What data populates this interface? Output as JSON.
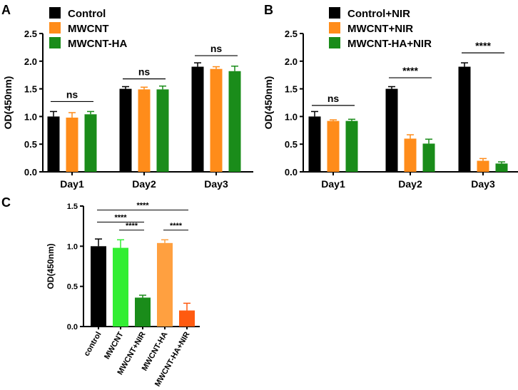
{
  "colors": {
    "black": "#000000",
    "orange": "#ff8c1a",
    "green": "#1a8c1a",
    "bright_green": "#33ee33",
    "light_orange": "#ffa040",
    "red_orange": "#ff5a10"
  },
  "chart_data": [
    {
      "panel": "A",
      "type": "bar",
      "ylabel": "OD(450nm)",
      "ylim": [
        0,
        2.5
      ],
      "yticks": [
        "0.0",
        "0.5",
        "1.0",
        "1.5",
        "2.0",
        "2.5"
      ],
      "categories": [
        "Day1",
        "Day2",
        "Day3"
      ],
      "series": [
        {
          "name": "Control",
          "color": "#000000",
          "values": [
            1.0,
            1.5,
            1.9
          ],
          "errors": [
            0.09,
            0.04,
            0.07
          ]
        },
        {
          "name": "MWCNT",
          "color": "#ff8c1a",
          "values": [
            0.98,
            1.49,
            1.86
          ],
          "errors": [
            0.09,
            0.04,
            0.04
          ]
        },
        {
          "name": "MWCNT-HA",
          "color": "#1a8c1a",
          "values": [
            1.04,
            1.49,
            1.82
          ],
          "errors": [
            0.05,
            0.06,
            0.09
          ]
        }
      ],
      "annotations": [
        {
          "text": "ns",
          "category": 0,
          "y": 1.27
        },
        {
          "text": "ns",
          "category": 1,
          "y": 1.68
        },
        {
          "text": "ns",
          "category": 2,
          "y": 2.1
        }
      ]
    },
    {
      "panel": "B",
      "type": "bar",
      "ylabel": "OD(450nm)",
      "ylim": [
        0,
        2.5
      ],
      "yticks": [
        "0.0",
        "0.5",
        "1.0",
        "1.5",
        "2.0",
        "2.5"
      ],
      "categories": [
        "Day1",
        "Day2",
        "Day3"
      ],
      "series": [
        {
          "name": "Control+NIR",
          "color": "#000000",
          "values": [
            1.0,
            1.5,
            1.9
          ],
          "errors": [
            0.09,
            0.04,
            0.07
          ]
        },
        {
          "name": "MWCNT+NIR",
          "color": "#ff8c1a",
          "values": [
            0.92,
            0.6,
            0.2
          ],
          "errors": [
            0.02,
            0.07,
            0.04
          ]
        },
        {
          "name": "MWCNT-HA+NIR",
          "color": "#1a8c1a",
          "values": [
            0.92,
            0.51,
            0.15
          ],
          "errors": [
            0.03,
            0.08,
            0.03
          ]
        }
      ],
      "annotations": [
        {
          "text": "ns",
          "category": 0,
          "y": 1.2
        },
        {
          "text": "****",
          "category": 1,
          "y": 1.7
        },
        {
          "text": "****",
          "category": 2,
          "y": 2.15
        }
      ]
    },
    {
      "panel": "C",
      "type": "bar",
      "ylabel": "OD(450nm)",
      "ylim": [
        0,
        1.5
      ],
      "yticks": [
        "0.0",
        "0.5",
        "1.0",
        "1.5"
      ],
      "categories": [
        "control",
        "MWCNT",
        "MWCNT+NIR",
        "MWCNT-HA",
        "MWCNT-HA+NIR"
      ],
      "values": [
        1.0,
        0.98,
        0.36,
        1.04,
        0.2
      ],
      "errors": [
        0.09,
        0.1,
        0.03,
        0.04,
        0.09
      ],
      "colors": [
        "#000000",
        "#33ee33",
        "#1a8c1a",
        "#ffa040",
        "#ff5a10"
      ],
      "comparisons": [
        {
          "text": "****",
          "from": 0,
          "to": 4,
          "y": 1.45
        },
        {
          "text": "****",
          "from": 0,
          "to": 2,
          "y": 1.3
        },
        {
          "text": "****",
          "from": 1,
          "to": 2,
          "y": 1.2
        },
        {
          "text": "****",
          "from": 3,
          "to": 4,
          "y": 1.2
        }
      ]
    }
  ]
}
